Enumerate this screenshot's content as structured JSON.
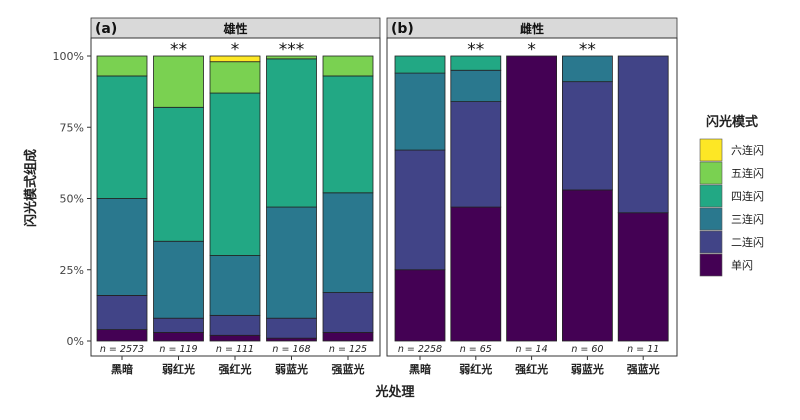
{
  "chart_data": [
    {
      "type": "bar",
      "stacked": "percent",
      "panel_label": "(a)",
      "title": "雄性",
      "categories": [
        "黑暗",
        "弱红光",
        "强红光",
        "弱蓝光",
        "强蓝光"
      ],
      "n_labels": [
        "n = 2573",
        "n = 119",
        "n = 111",
        "n = 168",
        "n = 125"
      ],
      "significance": [
        "",
        "**",
        "*",
        "***",
        ""
      ],
      "series": [
        {
          "name": "单闪",
          "values": [
            4,
            3,
            2,
            1,
            3
          ]
        },
        {
          "name": "二连闪",
          "values": [
            12,
            5,
            7,
            7,
            14
          ]
        },
        {
          "name": "三连闪",
          "values": [
            34,
            27,
            21,
            39,
            35
          ]
        },
        {
          "name": "四连闪",
          "values": [
            43,
            47,
            57,
            52,
            41
          ]
        },
        {
          "name": "五连闪",
          "values": [
            7,
            18,
            11,
            1,
            7
          ]
        },
        {
          "name": "六连闪",
          "values": [
            0,
            0,
            2,
            0,
            0
          ]
        }
      ],
      "ylim": [
        0,
        100
      ]
    },
    {
      "type": "bar",
      "stacked": "percent",
      "panel_label": "(b)",
      "title": "雌性",
      "categories": [
        "黑暗",
        "弱红光",
        "强红光",
        "弱蓝光",
        "强蓝光"
      ],
      "n_labels": [
        "n = 2258",
        "n = 65",
        "n = 14",
        "n = 60",
        "n = 11"
      ],
      "significance": [
        "",
        "**",
        "*",
        "**",
        ""
      ],
      "series": [
        {
          "name": "单闪",
          "values": [
            25,
            47,
            100,
            53,
            45
          ]
        },
        {
          "name": "二连闪",
          "values": [
            42,
            37,
            0,
            38,
            55
          ]
        },
        {
          "name": "三连闪",
          "values": [
            27,
            11,
            0,
            9,
            0
          ]
        },
        {
          "name": "四连闪",
          "values": [
            6,
            5,
            0,
            0,
            0
          ]
        },
        {
          "name": "五连闪",
          "values": [
            0,
            0,
            0,
            0,
            0
          ]
        },
        {
          "name": "六连闪",
          "values": [
            0,
            0,
            0,
            0,
            0
          ]
        }
      ],
      "ylim": [
        0,
        100
      ]
    }
  ],
  "axes": {
    "ylabel": "闪光模式组成",
    "xlabel": "光处理",
    "yticks": [
      "0%",
      "25%",
      "50%",
      "75%",
      "100%"
    ]
  },
  "legend": {
    "title": "闪光模式",
    "items": [
      "六连闪",
      "五连闪",
      "四连闪",
      "三连闪",
      "二连闪",
      "单闪"
    ]
  },
  "colors": {
    "单闪": "#440154",
    "二连闪": "#414487",
    "三连闪": "#2a788e",
    "四连闪": "#22a884",
    "五连闪": "#7ad151",
    "六连闪": "#fde725",
    "strip": "#d9d9d9"
  }
}
